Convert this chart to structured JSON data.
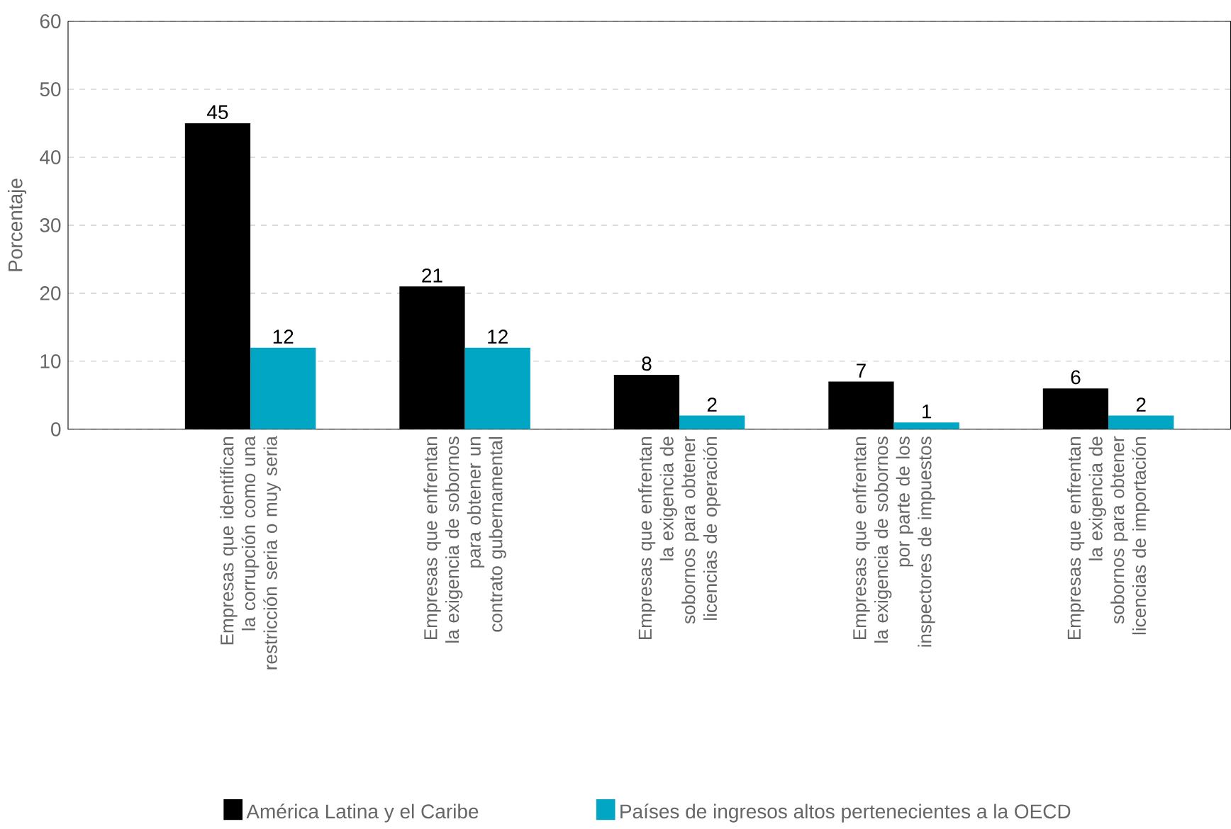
{
  "chart_data": {
    "type": "bar",
    "ylabel": "Porcentaje",
    "categories": [
      "Empresas que identifican la corrupción como una restricción seria o muy seria",
      "Empresas que enfrentan la exigencia de sobornos para obtener un contrato gubernamental",
      "Empresas que enfrentan la exigencia de sobornos para obtener licencias de operación",
      "Empresas que enfrentan la exigencia de sobornos por parte de los inspectores de impuestos",
      "Empresas que enfrentan la exigencia de sobornos para obtener licencias de importación"
    ],
    "series": [
      {
        "name": "América Latina y el Caribe",
        "color": "#000000",
        "values": [
          45,
          21,
          8,
          7,
          6
        ]
      },
      {
        "name": "Países de ingresos altos pertenecientes a la OECD",
        "color": "#00a6c4",
        "values": [
          12,
          12,
          2,
          1,
          2
        ]
      }
    ],
    "ylim": [
      0,
      60
    ],
    "yticks": [
      0,
      10,
      20,
      30,
      40,
      50,
      60
    ],
    "grid": "y",
    "legend": "bottom",
    "data_labels": true
  }
}
